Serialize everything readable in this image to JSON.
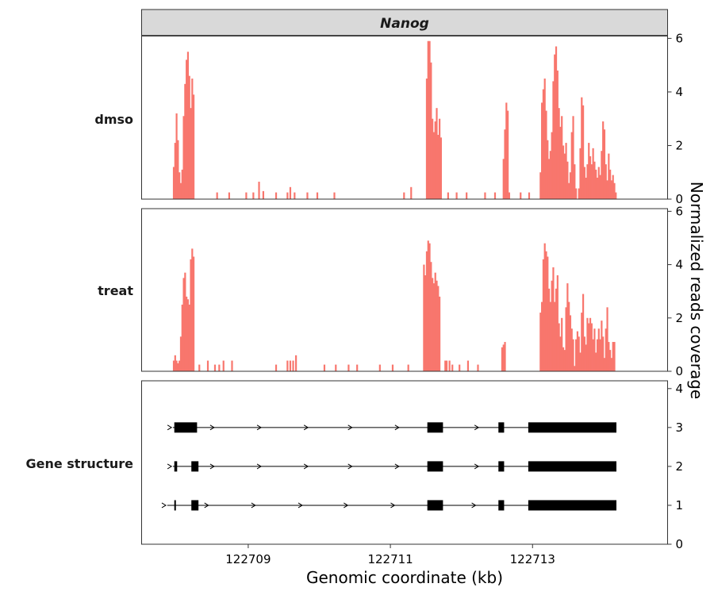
{
  "chart_data": {
    "type": "bar",
    "title": "Nanog",
    "xlabel": "Genomic coordinate (kb)",
    "ylabel": "Normalized reads coverage",
    "xlim": [
      122707.5,
      122714.9
    ],
    "x_ticks": [
      "122709",
      "122711",
      "122713"
    ],
    "bar_color": "#f8766d",
    "structure_color": "#000000",
    "rows": [
      {
        "name": "dmso",
        "ylim": [
          0,
          6.1
        ],
        "y_ticks": [
          "0",
          "2",
          "4",
          "6"
        ],
        "bin_width": 0.02,
        "bars": [
          {
            "x": 122707.94,
            "y": 1.2
          },
          {
            "x": 122707.96,
            "y": 2.1
          },
          {
            "x": 122707.98,
            "y": 3.2
          },
          {
            "x": 122708.0,
            "y": 2.2
          },
          {
            "x": 122708.02,
            "y": 1.0
          },
          {
            "x": 122708.04,
            "y": 0.6
          },
          {
            "x": 122708.06,
            "y": 1.1
          },
          {
            "x": 122708.08,
            "y": 3.1
          },
          {
            "x": 122708.1,
            "y": 4.3
          },
          {
            "x": 122708.12,
            "y": 5.2
          },
          {
            "x": 122708.14,
            "y": 5.5
          },
          {
            "x": 122708.16,
            "y": 4.6
          },
          {
            "x": 122708.18,
            "y": 3.4
          },
          {
            "x": 122708.2,
            "y": 4.5
          },
          {
            "x": 122708.22,
            "y": 3.9
          },
          {
            "x": 122708.55,
            "y": 0.25
          },
          {
            "x": 122708.72,
            "y": 0.25
          },
          {
            "x": 122708.96,
            "y": 0.25
          },
          {
            "x": 122709.06,
            "y": 0.25
          },
          {
            "x": 122709.14,
            "y": 0.65
          },
          {
            "x": 122709.2,
            "y": 0.3
          },
          {
            "x": 122709.38,
            "y": 0.25
          },
          {
            "x": 122709.54,
            "y": 0.25
          },
          {
            "x": 122709.58,
            "y": 0.45
          },
          {
            "x": 122709.64,
            "y": 0.25
          },
          {
            "x": 122709.82,
            "y": 0.25
          },
          {
            "x": 122709.96,
            "y": 0.25
          },
          {
            "x": 122710.2,
            "y": 0.25
          },
          {
            "x": 122711.18,
            "y": 0.25
          },
          {
            "x": 122711.28,
            "y": 0.45
          },
          {
            "x": 122711.5,
            "y": 4.5
          },
          {
            "x": 122711.52,
            "y": 5.9
          },
          {
            "x": 122711.54,
            "y": 5.9
          },
          {
            "x": 122711.56,
            "y": 5.1
          },
          {
            "x": 122711.58,
            "y": 3.0
          },
          {
            "x": 122711.6,
            "y": 2.5
          },
          {
            "x": 122711.62,
            "y": 2.9
          },
          {
            "x": 122711.64,
            "y": 3.4
          },
          {
            "x": 122711.66,
            "y": 2.4
          },
          {
            "x": 122711.68,
            "y": 3.0
          },
          {
            "x": 122711.7,
            "y": 2.3
          },
          {
            "x": 122711.8,
            "y": 0.25
          },
          {
            "x": 122711.92,
            "y": 0.25
          },
          {
            "x": 122712.06,
            "y": 0.25
          },
          {
            "x": 122712.32,
            "y": 0.25
          },
          {
            "x": 122712.46,
            "y": 0.25
          },
          {
            "x": 122712.58,
            "y": 1.5
          },
          {
            "x": 122712.6,
            "y": 2.6
          },
          {
            "x": 122712.62,
            "y": 3.6
          },
          {
            "x": 122712.64,
            "y": 3.3
          },
          {
            "x": 122712.66,
            "y": 0.25
          },
          {
            "x": 122712.82,
            "y": 0.25
          },
          {
            "x": 122712.94,
            "y": 0.25
          },
          {
            "x": 122713.1,
            "y": 1.0
          },
          {
            "x": 122713.12,
            "y": 3.6
          },
          {
            "x": 122713.14,
            "y": 4.1
          },
          {
            "x": 122713.16,
            "y": 4.5
          },
          {
            "x": 122713.18,
            "y": 3.3
          },
          {
            "x": 122713.2,
            "y": 2.2
          },
          {
            "x": 122713.22,
            "y": 1.5
          },
          {
            "x": 122713.24,
            "y": 1.8
          },
          {
            "x": 122713.26,
            "y": 2.5
          },
          {
            "x": 122713.28,
            "y": 4.4
          },
          {
            "x": 122713.3,
            "y": 5.4
          },
          {
            "x": 122713.32,
            "y": 5.7
          },
          {
            "x": 122713.34,
            "y": 4.8
          },
          {
            "x": 122713.36,
            "y": 3.4
          },
          {
            "x": 122713.38,
            "y": 2.7
          },
          {
            "x": 122713.4,
            "y": 3.1
          },
          {
            "x": 122713.42,
            "y": 2.0
          },
          {
            "x": 122713.44,
            "y": 1.7
          },
          {
            "x": 122713.46,
            "y": 2.1
          },
          {
            "x": 122713.48,
            "y": 1.4
          },
          {
            "x": 122713.5,
            "y": 0.6
          },
          {
            "x": 122713.52,
            "y": 1.0
          },
          {
            "x": 122713.54,
            "y": 2.5
          },
          {
            "x": 122713.56,
            "y": 3.1
          },
          {
            "x": 122713.58,
            "y": 1.3
          },
          {
            "x": 122713.6,
            "y": 0.4
          },
          {
            "x": 122713.64,
            "y": 0.4
          },
          {
            "x": 122713.66,
            "y": 1.9
          },
          {
            "x": 122713.68,
            "y": 3.8
          },
          {
            "x": 122713.7,
            "y": 3.5
          },
          {
            "x": 122713.72,
            "y": 1.2
          },
          {
            "x": 122713.74,
            "y": 0.8
          },
          {
            "x": 122713.76,
            "y": 1.3
          },
          {
            "x": 122713.78,
            "y": 2.1
          },
          {
            "x": 122713.8,
            "y": 1.6
          },
          {
            "x": 122713.82,
            "y": 1.3
          },
          {
            "x": 122713.84,
            "y": 1.9
          },
          {
            "x": 122713.86,
            "y": 1.4
          },
          {
            "x": 122713.88,
            "y": 1.1
          },
          {
            "x": 122713.9,
            "y": 0.8
          },
          {
            "x": 122713.92,
            "y": 1.2
          },
          {
            "x": 122713.94,
            "y": 0.9
          },
          {
            "x": 122713.96,
            "y": 1.8
          },
          {
            "x": 122713.98,
            "y": 2.9
          },
          {
            "x": 122714.0,
            "y": 2.6
          },
          {
            "x": 122714.02,
            "y": 1.3
          },
          {
            "x": 122714.04,
            "y": 0.7
          },
          {
            "x": 122714.06,
            "y": 1.7
          },
          {
            "x": 122714.08,
            "y": 1.1
          },
          {
            "x": 122714.1,
            "y": 0.7
          },
          {
            "x": 122714.12,
            "y": 0.9
          },
          {
            "x": 122714.14,
            "y": 0.6
          },
          {
            "x": 122714.16,
            "y": 0.25
          }
        ]
      },
      {
        "name": "treat",
        "ylim": [
          0,
          6.1
        ],
        "y_ticks": [
          "0",
          "2",
          "4",
          "6"
        ],
        "bin_width": 0.02,
        "bars": [
          {
            "x": 122707.94,
            "y": 0.4
          },
          {
            "x": 122707.96,
            "y": 0.6
          },
          {
            "x": 122707.98,
            "y": 0.4
          },
          {
            "x": 122708.0,
            "y": 0.3
          },
          {
            "x": 122708.02,
            "y": 0.4
          },
          {
            "x": 122708.04,
            "y": 1.3
          },
          {
            "x": 122708.06,
            "y": 2.5
          },
          {
            "x": 122708.08,
            "y": 3.5
          },
          {
            "x": 122708.1,
            "y": 3.7
          },
          {
            "x": 122708.12,
            "y": 2.8
          },
          {
            "x": 122708.14,
            "y": 2.7
          },
          {
            "x": 122708.16,
            "y": 2.5
          },
          {
            "x": 122708.18,
            "y": 4.2
          },
          {
            "x": 122708.2,
            "y": 4.6
          },
          {
            "x": 122708.22,
            "y": 4.3
          },
          {
            "x": 122708.3,
            "y": 0.25
          },
          {
            "x": 122708.42,
            "y": 0.4
          },
          {
            "x": 122708.52,
            "y": 0.25
          },
          {
            "x": 122708.58,
            "y": 0.25
          },
          {
            "x": 122708.64,
            "y": 0.4
          },
          {
            "x": 122708.76,
            "y": 0.4
          },
          {
            "x": 122709.38,
            "y": 0.25
          },
          {
            "x": 122709.54,
            "y": 0.4
          },
          {
            "x": 122709.58,
            "y": 0.4
          },
          {
            "x": 122709.62,
            "y": 0.4
          },
          {
            "x": 122709.66,
            "y": 0.6
          },
          {
            "x": 122710.06,
            "y": 0.25
          },
          {
            "x": 122710.22,
            "y": 0.25
          },
          {
            "x": 122710.4,
            "y": 0.25
          },
          {
            "x": 122710.52,
            "y": 0.25
          },
          {
            "x": 122710.84,
            "y": 0.25
          },
          {
            "x": 122711.02,
            "y": 0.25
          },
          {
            "x": 122711.24,
            "y": 0.25
          },
          {
            "x": 122711.46,
            "y": 4.0
          },
          {
            "x": 122711.48,
            "y": 3.6
          },
          {
            "x": 122711.5,
            "y": 4.5
          },
          {
            "x": 122711.52,
            "y": 4.9
          },
          {
            "x": 122711.54,
            "y": 4.8
          },
          {
            "x": 122711.56,
            "y": 4.1
          },
          {
            "x": 122711.58,
            "y": 3.5
          },
          {
            "x": 122711.6,
            "y": 3.3
          },
          {
            "x": 122711.62,
            "y": 3.7
          },
          {
            "x": 122711.64,
            "y": 3.4
          },
          {
            "x": 122711.66,
            "y": 3.2
          },
          {
            "x": 122711.68,
            "y": 2.8
          },
          {
            "x": 122711.76,
            "y": 0.4
          },
          {
            "x": 122711.78,
            "y": 0.4
          },
          {
            "x": 122711.82,
            "y": 0.4
          },
          {
            "x": 122711.86,
            "y": 0.25
          },
          {
            "x": 122711.96,
            "y": 0.25
          },
          {
            "x": 122712.08,
            "y": 0.4
          },
          {
            "x": 122712.22,
            "y": 0.25
          },
          {
            "x": 122712.56,
            "y": 0.9
          },
          {
            "x": 122712.58,
            "y": 1.0
          },
          {
            "x": 122712.6,
            "y": 1.1
          },
          {
            "x": 122713.1,
            "y": 2.2
          },
          {
            "x": 122713.12,
            "y": 2.6
          },
          {
            "x": 122713.14,
            "y": 4.2
          },
          {
            "x": 122713.16,
            "y": 4.8
          },
          {
            "x": 122713.18,
            "y": 4.5
          },
          {
            "x": 122713.2,
            "y": 4.3
          },
          {
            "x": 122713.22,
            "y": 3.1
          },
          {
            "x": 122713.24,
            "y": 2.6
          },
          {
            "x": 122713.26,
            "y": 3.4
          },
          {
            "x": 122713.28,
            "y": 3.9
          },
          {
            "x": 122713.3,
            "y": 2.6
          },
          {
            "x": 122713.32,
            "y": 3.1
          },
          {
            "x": 122713.34,
            "y": 3.6
          },
          {
            "x": 122713.36,
            "y": 1.8
          },
          {
            "x": 122713.38,
            "y": 1.3
          },
          {
            "x": 122713.4,
            "y": 2.0
          },
          {
            "x": 122713.42,
            "y": 0.9
          },
          {
            "x": 122713.44,
            "y": 0.8
          },
          {
            "x": 122713.46,
            "y": 2.4
          },
          {
            "x": 122713.48,
            "y": 3.3
          },
          {
            "x": 122713.5,
            "y": 2.6
          },
          {
            "x": 122713.52,
            "y": 2.1
          },
          {
            "x": 122713.54,
            "y": 1.6
          },
          {
            "x": 122713.56,
            "y": 1.2
          },
          {
            "x": 122713.58,
            "y": 0.2
          },
          {
            "x": 122713.6,
            "y": 1.2
          },
          {
            "x": 122713.62,
            "y": 1.5
          },
          {
            "x": 122713.64,
            "y": 1.3
          },
          {
            "x": 122713.66,
            "y": 0.7
          },
          {
            "x": 122713.68,
            "y": 2.2
          },
          {
            "x": 122713.7,
            "y": 2.9
          },
          {
            "x": 122713.72,
            "y": 1.3
          },
          {
            "x": 122713.74,
            "y": 1.0
          },
          {
            "x": 122713.76,
            "y": 2.0
          },
          {
            "x": 122713.78,
            "y": 1.8
          },
          {
            "x": 122713.8,
            "y": 2.0
          },
          {
            "x": 122713.82,
            "y": 1.8
          },
          {
            "x": 122713.84,
            "y": 1.2
          },
          {
            "x": 122713.86,
            "y": 1.6
          },
          {
            "x": 122713.88,
            "y": 0.7
          },
          {
            "x": 122713.9,
            "y": 1.2
          },
          {
            "x": 122713.92,
            "y": 1.6
          },
          {
            "x": 122713.94,
            "y": 1.2
          },
          {
            "x": 122713.96,
            "y": 1.9
          },
          {
            "x": 122713.98,
            "y": 1.3
          },
          {
            "x": 122714.0,
            "y": 0.5
          },
          {
            "x": 122714.02,
            "y": 1.6
          },
          {
            "x": 122714.04,
            "y": 2.4
          },
          {
            "x": 122714.06,
            "y": 1.1
          },
          {
            "x": 122714.08,
            "y": 0.8
          },
          {
            "x": 122714.1,
            "y": 0.5
          },
          {
            "x": 122714.12,
            "y": 1.1
          },
          {
            "x": 122714.14,
            "y": 1.1
          }
        ]
      }
    ],
    "gene_structure": {
      "name": "Gene structure",
      "ylim": [
        0,
        4.2
      ],
      "y_ticks": [
        "0",
        "1",
        "2",
        "3",
        "4"
      ],
      "transcripts": [
        {
          "track": 3,
          "start": 122707.94,
          "end": 122714.18,
          "exons": [
            [
              122707.96,
              122708.28
            ],
            [
              122711.52,
              122711.74
            ],
            [
              122712.52,
              122712.6
            ],
            [
              122712.94,
              122714.18
            ]
          ],
          "arrows": [
            122707.92,
            122708.52,
            122709.18,
            122709.84,
            122710.46,
            122711.12,
            122712.24
          ]
        },
        {
          "track": 2,
          "start": 122707.94,
          "end": 122714.18,
          "exons": [
            [
              122707.96,
              122708.0
            ],
            [
              122708.2,
              122708.3
            ],
            [
              122711.52,
              122711.74
            ],
            [
              122712.52,
              122712.6
            ],
            [
              122712.94,
              122714.18
            ]
          ],
          "arrows": [
            122707.92,
            122708.52,
            122709.18,
            122709.84,
            122710.46,
            122711.12,
            122712.24
          ]
        },
        {
          "track": 1,
          "start": 122707.86,
          "end": 122714.18,
          "exons": [
            [
              122707.96,
              122707.98
            ],
            [
              122708.2,
              122708.3
            ],
            [
              122711.52,
              122711.74
            ],
            [
              122712.52,
              122712.6
            ],
            [
              122712.94,
              122714.18
            ]
          ],
          "arrows": [
            122707.84,
            122708.44,
            122709.1,
            122709.76,
            122710.4,
            122711.06,
            122712.2
          ]
        }
      ]
    }
  }
}
